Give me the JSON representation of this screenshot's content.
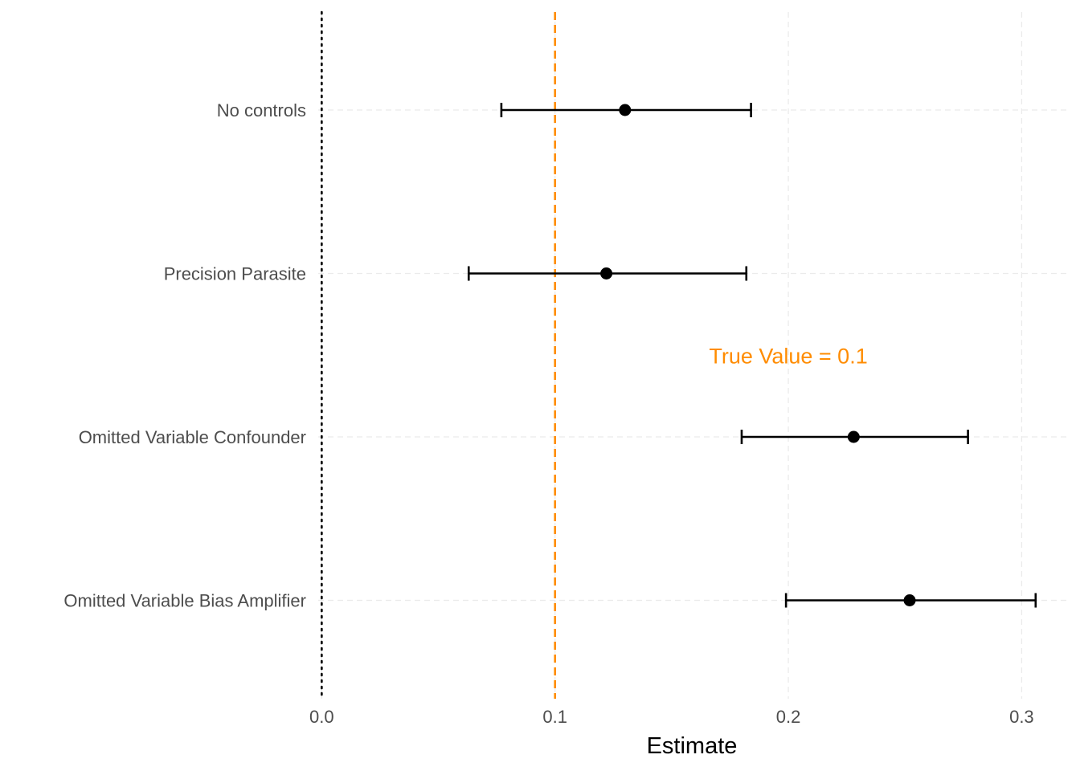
{
  "chart_data": {
    "type": "scatter",
    "variant": "coefficient-plot-with-error-bars",
    "title": "",
    "xlabel": "Estimate",
    "ylabel": "",
    "xlim": [
      -0.0015,
      0.3195
    ],
    "x_ticks": [
      0.0,
      0.1,
      0.2,
      0.3
    ],
    "x_tick_labels": [
      "0.0",
      "0.1",
      "0.2",
      "0.3"
    ],
    "grid": true,
    "grid_style": "dashed",
    "legend": "none",
    "rows": [
      {
        "label": "No controls",
        "estimate": 0.13,
        "lower": 0.077,
        "upper": 0.184
      },
      {
        "label": "Precision Parasite",
        "estimate": 0.122,
        "lower": 0.063,
        "upper": 0.182
      },
      {
        "label": "Omitted Variable Confounder",
        "estimate": 0.228,
        "lower": 0.18,
        "upper": 0.277
      },
      {
        "label": "Omitted Variable Bias Amplifier",
        "estimate": 0.252,
        "lower": 0.199,
        "upper": 0.306
      }
    ],
    "reference_lines": [
      {
        "x": 0.0,
        "style": "dotted",
        "color": "#000000"
      },
      {
        "x": 0.1,
        "style": "dashed",
        "color": "#ff8c00"
      }
    ],
    "annotation": {
      "text": "True Value = 0.1",
      "x": 0.2,
      "row_between": [
        2,
        3
      ],
      "color": "#ff8c00"
    },
    "point_color": "#000000",
    "grid_color": "#ebebeb"
  }
}
